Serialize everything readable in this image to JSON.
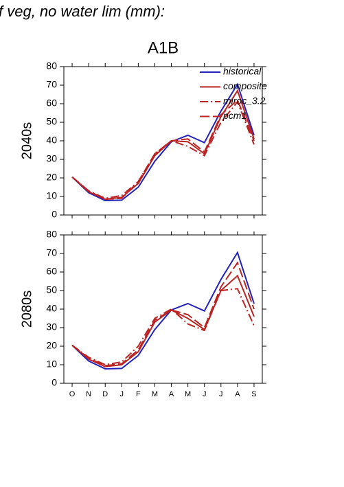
{
  "title": "f veg, no water lim (mm):",
  "chart_data": [
    {
      "type": "line",
      "title": "A1B",
      "ylabel": "2040s",
      "ylim": [
        0,
        80
      ],
      "yticks": [
        0,
        10,
        20,
        30,
        40,
        50,
        60,
        70,
        80
      ],
      "legend": "upper right",
      "series": [
        {
          "name": "historical",
          "color": "#2222bb",
          "dash": "solid",
          "values": [
            20.5,
            12,
            7.8,
            8,
            15,
            29,
            39.5,
            43,
            39,
            56,
            70.5,
            43
          ]
        },
        {
          "name": "composite",
          "color": "#bb2222",
          "dash": "solid",
          "values": [
            20.5,
            12.5,
            8.5,
            9.5,
            17,
            32,
            40,
            39.5,
            33,
            53,
            67,
            41
          ]
        },
        {
          "name": "miroc_3.2",
          "color": "#bb2222",
          "dash": "dashdot",
          "values": [
            20.5,
            13,
            9,
            10.5,
            18,
            33,
            40,
            37,
            32,
            50,
            61,
            38
          ]
        },
        {
          "name": "pcm1",
          "color": "#bb2222",
          "dash": "longdash",
          "values": [
            20.5,
            13,
            8.5,
            9,
            18,
            33,
            40,
            41,
            34,
            54,
            62,
            40
          ]
        }
      ]
    },
    {
      "type": "line",
      "ylabel": "2080s",
      "categories": [
        "O",
        "N",
        "D",
        "J",
        "F",
        "M",
        "A",
        "M",
        "J",
        "J",
        "A",
        "S"
      ],
      "ylim": [
        0,
        80
      ],
      "yticks": [
        0,
        10,
        20,
        30,
        40,
        50,
        60,
        70,
        80
      ],
      "series": [
        {
          "color": "#2222bb",
          "dash": "solid",
          "values": [
            20.5,
            12,
            7.8,
            8,
            15,
            29,
            39.5,
            43,
            39,
            56,
            70.5,
            43
          ]
        },
        {
          "color": "#bb2222",
          "dash": "solid",
          "values": [
            20.5,
            13,
            9,
            10,
            17,
            33,
            39.5,
            35,
            29,
            50,
            58,
            36
          ]
        },
        {
          "color": "#bb2222",
          "dash": "dashdot",
          "values": [
            20.5,
            14,
            10,
            11.5,
            20,
            35,
            40,
            32,
            28.5,
            50,
            51,
            31
          ]
        },
        {
          "color": "#bb2222",
          "dash": "longdash",
          "values": [
            20.5,
            13.5,
            9.5,
            10.5,
            18,
            34,
            39.5,
            37,
            30,
            52,
            65,
            40
          ]
        }
      ]
    }
  ]
}
